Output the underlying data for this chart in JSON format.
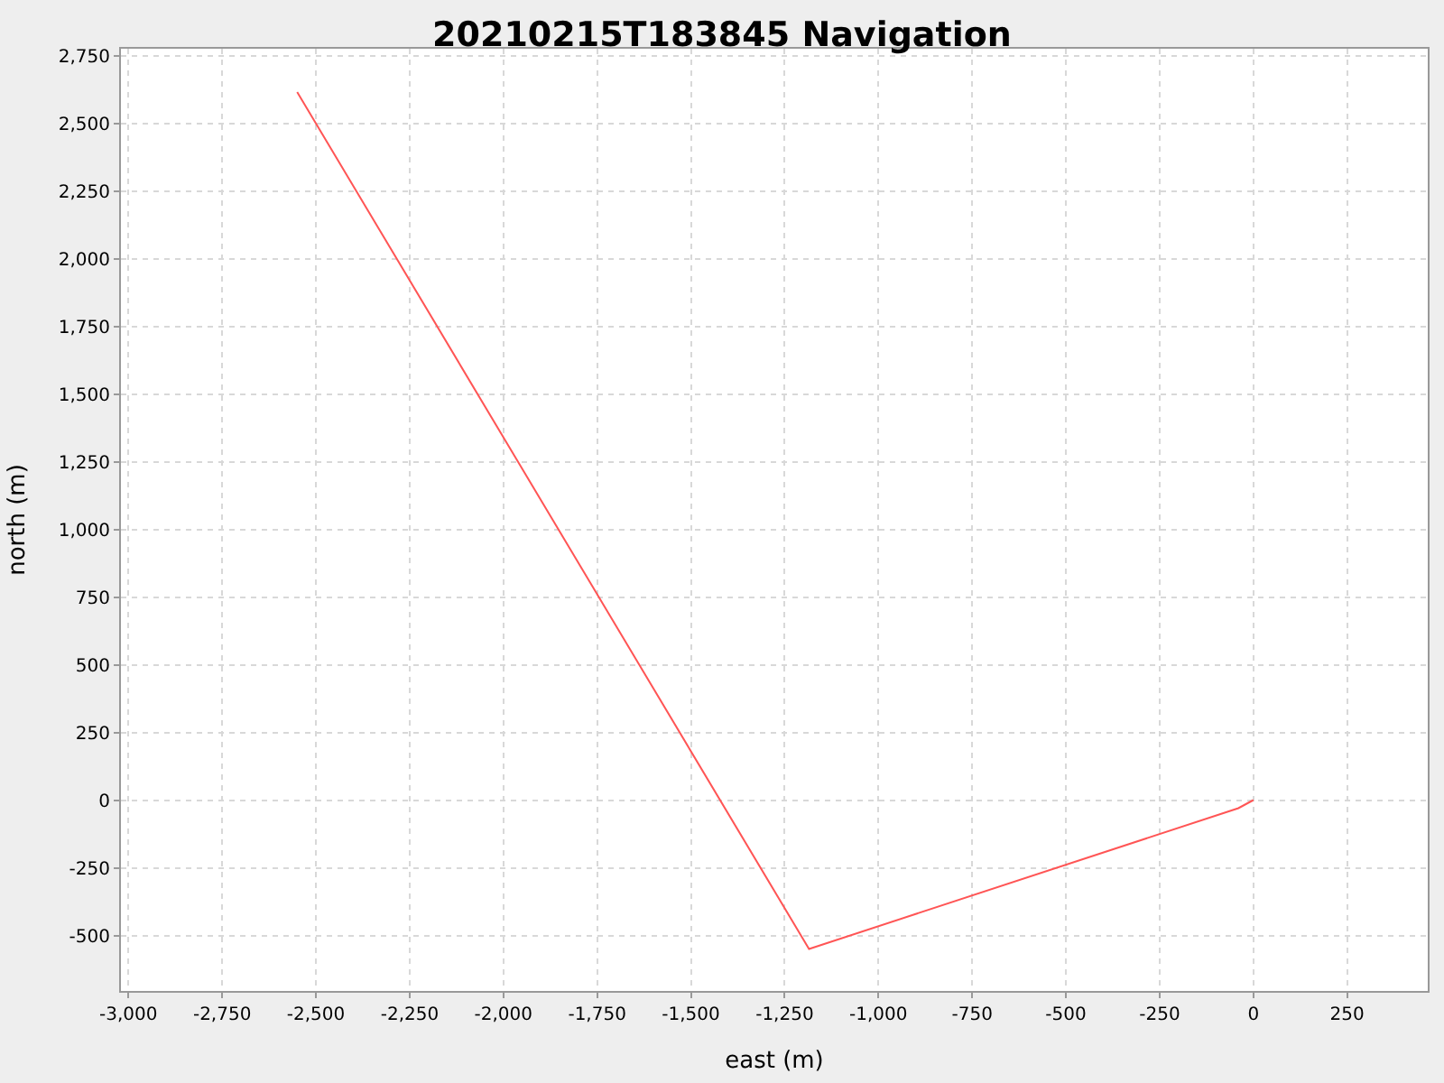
{
  "chart_data": {
    "type": "line",
    "title": "20210215T183845 Navigation",
    "xlabel": "east (m)",
    "ylabel": "north (m)",
    "series": [
      {
        "color": "#ff5555",
        "x": [
          -2550,
          -1185,
          -40,
          0
        ],
        "values": [
          2615,
          -550,
          -30,
          0
        ]
      }
    ],
    "xlim": [
      -3020,
      465
    ],
    "ylim": [
      -705,
      2775
    ],
    "xticks": [
      {
        "value": -3000,
        "label": "-3,000"
      },
      {
        "value": -2750,
        "label": "-2,750"
      },
      {
        "value": -2500,
        "label": "-2,500"
      },
      {
        "value": -2250,
        "label": "-2,250"
      },
      {
        "value": -2000,
        "label": "-2,000"
      },
      {
        "value": -1750,
        "label": "-1,750"
      },
      {
        "value": -1500,
        "label": "-1,500"
      },
      {
        "value": -1250,
        "label": "-1,250"
      },
      {
        "value": -1000,
        "label": "-1,000"
      },
      -750,
      -500,
      -250,
      0,
      250
    ],
    "yticks": [
      -500,
      -250,
      0,
      250,
      500,
      750,
      {
        "value": 1000,
        "label": "1,000"
      },
      {
        "value": 1250,
        "label": "1,250"
      },
      {
        "value": 1500,
        "label": "1,500"
      },
      {
        "value": 1750,
        "label": "1,750"
      },
      {
        "value": 2000,
        "label": "2,000"
      },
      {
        "value": 2250,
        "label": "2,250"
      },
      {
        "value": 2500,
        "label": "2,500"
      },
      {
        "value": 2750,
        "label": "2,750"
      }
    ],
    "grid": true,
    "marker": "none",
    "line_style": "solid"
  }
}
